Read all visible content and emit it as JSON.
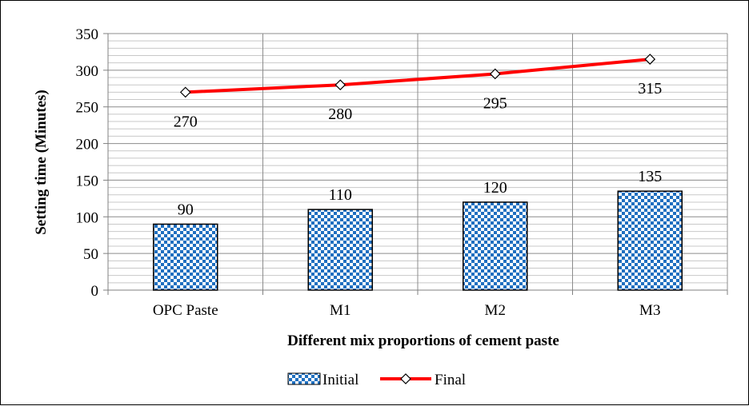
{
  "chart_data": {
    "type": "bar",
    "categories": [
      "OPC Paste",
      "M1",
      "M2",
      "M3"
    ],
    "series": [
      {
        "name": "Initial",
        "type": "bar",
        "values": [
          90,
          110,
          120,
          135
        ],
        "pattern_colors": [
          "#1f6fc0",
          "#ffffff"
        ]
      },
      {
        "name": "Final",
        "type": "line",
        "values": [
          270,
          280,
          295,
          315
        ],
        "color": "#ff0000",
        "marker": "diamond-open"
      }
    ],
    "title": "",
    "xlabel": "Different mix proportions of cement paste",
    "ylabel": "Setting time (Minutes)",
    "ylim": [
      0,
      350
    ],
    "yticks": [
      0,
      50,
      100,
      150,
      200,
      250,
      300,
      350
    ],
    "minor_grid_step": 10,
    "grid": true,
    "legend_position": "bottom"
  }
}
